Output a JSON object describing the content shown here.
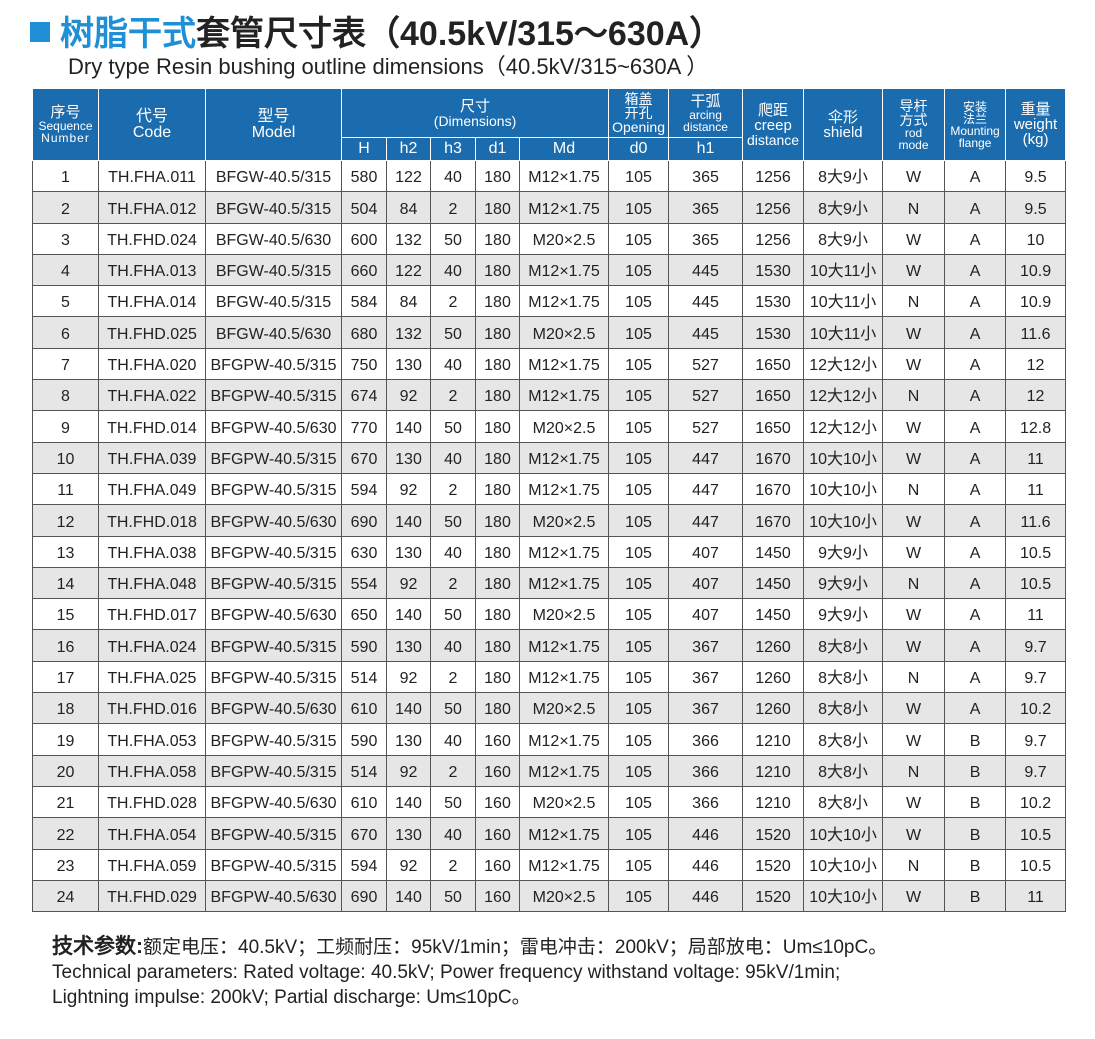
{
  "title": {
    "blue": "树脂干式",
    "black": "套管尺寸表（40.5kV/315～630A）"
  },
  "subtitle": "Dry type Resin bushing outline dimensions（40.5kV/315~630A ）",
  "header": {
    "seq_cn": "序号",
    "seq_en1": "Sequence",
    "seq_en2": "Number",
    "code_cn": "代号",
    "code_en": "Code",
    "model_cn": "型号",
    "model_en": "Model",
    "dim_cn": "尺寸",
    "dim_en": "(Dimensions)",
    "open_cn1": "箱盖",
    "open_cn2": "开孔",
    "open_en": "Opening",
    "arc_cn": "干弧",
    "arc_en1": "arcing",
    "arc_en2": "distance",
    "creep_cn": "爬距",
    "creep_en1": "creep",
    "creep_en2": "distance",
    "shield_cn": "伞形",
    "shield_en": "shield",
    "rod_cn1": "导杆",
    "rod_cn2": "方式",
    "rod_en1": "rod",
    "rod_en2": "mode",
    "flange_cn1": "安装",
    "flange_cn2": "法兰",
    "flange_en1": "Mounting",
    "flange_en2": "flange",
    "weight_cn": "重量",
    "weight_en1": "weight",
    "weight_en2": "(kg)",
    "sub": [
      "H",
      "h2",
      "h3",
      "d1",
      "Md",
      "d0",
      "h1"
    ]
  },
  "rows": [
    [
      "1",
      "TH.FHA.011",
      "BFGW-40.5/315",
      "580",
      "122",
      "40",
      "180",
      "M12×1.75",
      "105",
      "365",
      "1256",
      "8大9小",
      "W",
      "A",
      "9.5"
    ],
    [
      "2",
      "TH.FHA.012",
      "BFGW-40.5/315",
      "504",
      "84",
      "2",
      "180",
      "M12×1.75",
      "105",
      "365",
      "1256",
      "8大9小",
      "N",
      "A",
      "9.5"
    ],
    [
      "3",
      "TH.FHD.024",
      "BFGW-40.5/630",
      "600",
      "132",
      "50",
      "180",
      "M20×2.5",
      "105",
      "365",
      "1256",
      "8大9小",
      "W",
      "A",
      "10"
    ],
    [
      "4",
      "TH.FHA.013",
      "BFGW-40.5/315",
      "660",
      "122",
      "40",
      "180",
      "M12×1.75",
      "105",
      "445",
      "1530",
      "10大11小",
      "W",
      "A",
      "10.9"
    ],
    [
      "5",
      "TH.FHA.014",
      "BFGW-40.5/315",
      "584",
      "84",
      "2",
      "180",
      "M12×1.75",
      "105",
      "445",
      "1530",
      "10大11小",
      "N",
      "A",
      "10.9"
    ],
    [
      "6",
      "TH.FHD.025",
      "BFGW-40.5/630",
      "680",
      "132",
      "50",
      "180",
      "M20×2.5",
      "105",
      "445",
      "1530",
      "10大11小",
      "W",
      "A",
      "11.6"
    ],
    [
      "7",
      "TH.FHA.020",
      "BFGPW-40.5/315",
      "750",
      "130",
      "40",
      "180",
      "M12×1.75",
      "105",
      "527",
      "1650",
      "12大12小",
      "W",
      "A",
      "12"
    ],
    [
      "8",
      "TH.FHA.022",
      "BFGPW-40.5/315",
      "674",
      "92",
      "2",
      "180",
      "M12×1.75",
      "105",
      "527",
      "1650",
      "12大12小",
      "N",
      "A",
      "12"
    ],
    [
      "9",
      "TH.FHD.014",
      "BFGPW-40.5/630",
      "770",
      "140",
      "50",
      "180",
      "M20×2.5",
      "105",
      "527",
      "1650",
      "12大12小",
      "W",
      "A",
      "12.8"
    ],
    [
      "10",
      "TH.FHA.039",
      "BFGPW-40.5/315",
      "670",
      "130",
      "40",
      "180",
      "M12×1.75",
      "105",
      "447",
      "1670",
      "10大10小",
      "W",
      "A",
      "11"
    ],
    [
      "11",
      "TH.FHA.049",
      "BFGPW-40.5/315",
      "594",
      "92",
      "2",
      "180",
      "M12×1.75",
      "105",
      "447",
      "1670",
      "10大10小",
      "N",
      "A",
      "11"
    ],
    [
      "12",
      "TH.FHD.018",
      "BFGPW-40.5/630",
      "690",
      "140",
      "50",
      "180",
      "M20×2.5",
      "105",
      "447",
      "1670",
      "10大10小",
      "W",
      "A",
      "11.6"
    ],
    [
      "13",
      "TH.FHA.038",
      "BFGPW-40.5/315",
      "630",
      "130",
      "40",
      "180",
      "M12×1.75",
      "105",
      "407",
      "1450",
      "9大9小",
      "W",
      "A",
      "10.5"
    ],
    [
      "14",
      "TH.FHA.048",
      "BFGPW-40.5/315",
      "554",
      "92",
      "2",
      "180",
      "M12×1.75",
      "105",
      "407",
      "1450",
      "9大9小",
      "N",
      "A",
      "10.5"
    ],
    [
      "15",
      "TH.FHD.017",
      "BFGPW-40.5/630",
      "650",
      "140",
      "50",
      "180",
      "M20×2.5",
      "105",
      "407",
      "1450",
      "9大9小",
      "W",
      "A",
      "11"
    ],
    [
      "16",
      "TH.FHA.024",
      "BFGPW-40.5/315",
      "590",
      "130",
      "40",
      "180",
      "M12×1.75",
      "105",
      "367",
      "1260",
      "8大8小",
      "W",
      "A",
      "9.7"
    ],
    [
      "17",
      "TH.FHA.025",
      "BFGPW-40.5/315",
      "514",
      "92",
      "2",
      "180",
      "M12×1.75",
      "105",
      "367",
      "1260",
      "8大8小",
      "N",
      "A",
      "9.7"
    ],
    [
      "18",
      "TH.FHD.016",
      "BFGPW-40.5/630",
      "610",
      "140",
      "50",
      "180",
      "M20×2.5",
      "105",
      "367",
      "1260",
      "8大8小",
      "W",
      "A",
      "10.2"
    ],
    [
      "19",
      "TH.FHA.053",
      "BFGPW-40.5/315",
      "590",
      "130",
      "40",
      "160",
      "M12×1.75",
      "105",
      "366",
      "1210",
      "8大8小",
      "W",
      "B",
      "9.7"
    ],
    [
      "20",
      "TH.FHA.058",
      "BFGPW-40.5/315",
      "514",
      "92",
      "2",
      "160",
      "M12×1.75",
      "105",
      "366",
      "1210",
      "8大8小",
      "N",
      "B",
      "9.7"
    ],
    [
      "21",
      "TH.FHD.028",
      "BFGPW-40.5/630",
      "610",
      "140",
      "50",
      "160",
      "M20×2.5",
      "105",
      "366",
      "1210",
      "8大8小",
      "W",
      "B",
      "10.2"
    ],
    [
      "22",
      "TH.FHA.054",
      "BFGPW-40.5/315",
      "670",
      "130",
      "40",
      "160",
      "M12×1.75",
      "105",
      "446",
      "1520",
      "10大10小",
      "W",
      "B",
      "10.5"
    ],
    [
      "23",
      "TH.FHA.059",
      "BFGPW-40.5/315",
      "594",
      "92",
      "2",
      "160",
      "M12×1.75",
      "105",
      "446",
      "1520",
      "10大10小",
      "N",
      "B",
      "10.5"
    ],
    [
      "24",
      "TH.FHD.029",
      "BFGPW-40.5/630",
      "690",
      "140",
      "50",
      "160",
      "M20×2.5",
      "105",
      "446",
      "1520",
      "10大10小",
      "W",
      "B",
      "11"
    ]
  ],
  "notes": {
    "cn_label": "技术参数:",
    "cn_text": "额定电压：40.5kV；工频耐压：95kV/1min；雷电冲击：200kV；局部放电：Um≤10pC。",
    "en_line1": "Technical parameters: Rated voltage: 40.5kV; Power frequency withstand voltage: 95kV/1min;",
    "en_line2": "Lightning impulse: 200kV; Partial discharge: Um≤10pC。"
  }
}
